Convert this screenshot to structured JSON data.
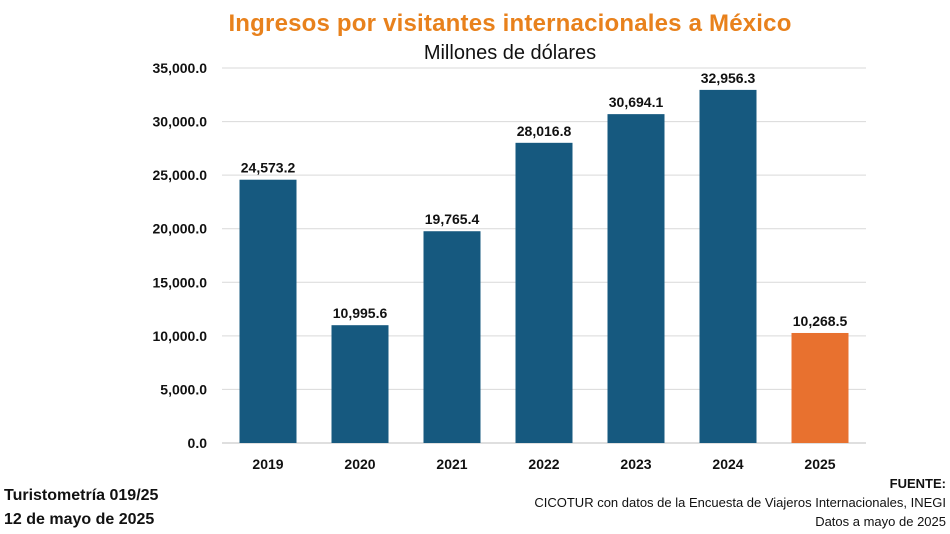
{
  "colors": {
    "primary_bar": "#16597f",
    "highlight_bar": "#e8712f",
    "title": "#e8811c",
    "grid": "#d9d9d9"
  },
  "chart_data": {
    "type": "bar",
    "title": "Ingresos por visitantes internacionales a México",
    "subtitle": "Millones de dólares",
    "xlabel": "",
    "ylabel": "",
    "categories": [
      "2019",
      "2020",
      "2021",
      "2022",
      "2023",
      "2024",
      "2025"
    ],
    "values": [
      24573.2,
      10995.6,
      19765.4,
      28016.8,
      30694.1,
      32956.3,
      10268.5
    ],
    "value_labels": [
      "24,573.2",
      "10,995.6",
      "19,765.4",
      "28,016.8",
      "30,694.1",
      "32,956.3",
      "10,268.5"
    ],
    "highlight_category": "2025",
    "ylim": [
      0,
      35000
    ],
    "yticks": [
      0,
      5000,
      10000,
      15000,
      20000,
      25000,
      30000,
      35000
    ],
    "ytick_labels": [
      "0.0",
      "5,000.0",
      "10,000.0",
      "15,000.0",
      "20,000.0",
      "25,000.0",
      "30,000.0",
      "35,000.0"
    ],
    "grid": true,
    "legend": "none"
  },
  "footer": {
    "left_line1": "Turistometría 019/25",
    "left_line2": "12 de mayo de 2025",
    "source_head": "FUENTE:",
    "source_line1": "CICOTUR con datos de la Encuesta de Viajeros Internacionales, INEGI",
    "source_line2": "Datos a mayo de 2025"
  }
}
